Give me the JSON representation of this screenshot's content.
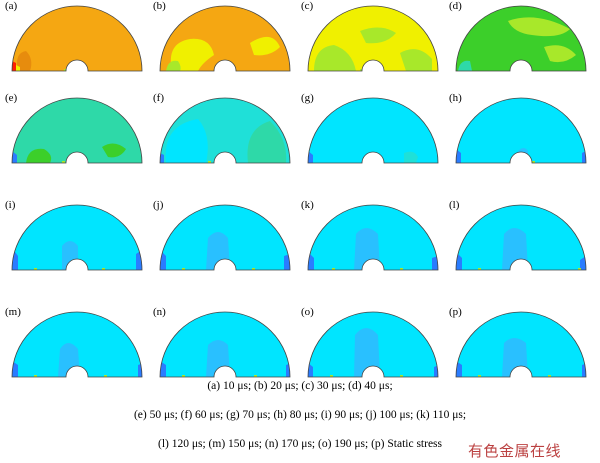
{
  "colors": {
    "orange": "#f5a712",
    "orange_dark": "#e78c0d",
    "yellow": "#f0f000",
    "lime": "#a8e82a",
    "green": "#3ccf2a",
    "teal": "#2ed9a8",
    "aqua": "#1fe0d8",
    "cyan": "#00e5ff",
    "lightblue": "#29c0ff",
    "blue": "#2a7cff",
    "navy": "#0000cc",
    "red": "#ff2000",
    "outline": "#444444"
  },
  "panels": [
    {
      "label": "(a)",
      "base": "orange"
    },
    {
      "label": "(b)",
      "base": "orange"
    },
    {
      "label": "(c)",
      "base": "yellow"
    },
    {
      "label": "(d)",
      "base": "green"
    },
    {
      "label": "(e)",
      "base": "teal"
    },
    {
      "label": "(f)",
      "base": "aqua"
    },
    {
      "label": "(g)",
      "base": "cyan"
    },
    {
      "label": "(h)",
      "base": "cyan"
    },
    {
      "label": "(i)",
      "base": "cyan"
    },
    {
      "label": "(j)",
      "base": "cyan"
    },
    {
      "label": "(k)",
      "base": "cyan"
    },
    {
      "label": "(l)",
      "base": "cyan"
    },
    {
      "label": "(m)",
      "base": "cyan"
    },
    {
      "label": "(n)",
      "base": "cyan"
    },
    {
      "label": "(o)",
      "base": "cyan"
    },
    {
      "label": "(p)",
      "base": "cyan"
    }
  ],
  "caption": [
    "(a) 10 μs; (b) 20 μs; (c) 30 μs; (d) 40 μs;",
    "(e) 50 μs; (f) 60 μs; (g) 70 μs; (h) 80 μs; (i) 90 μs; (j) 100 μs; (k) 110 μs;",
    "(l) 120 μs; (m) 150 μs; (n) 170 μs; (o) 190 μs; (p) Static stress"
  ],
  "watermark": "有色金属在线"
}
